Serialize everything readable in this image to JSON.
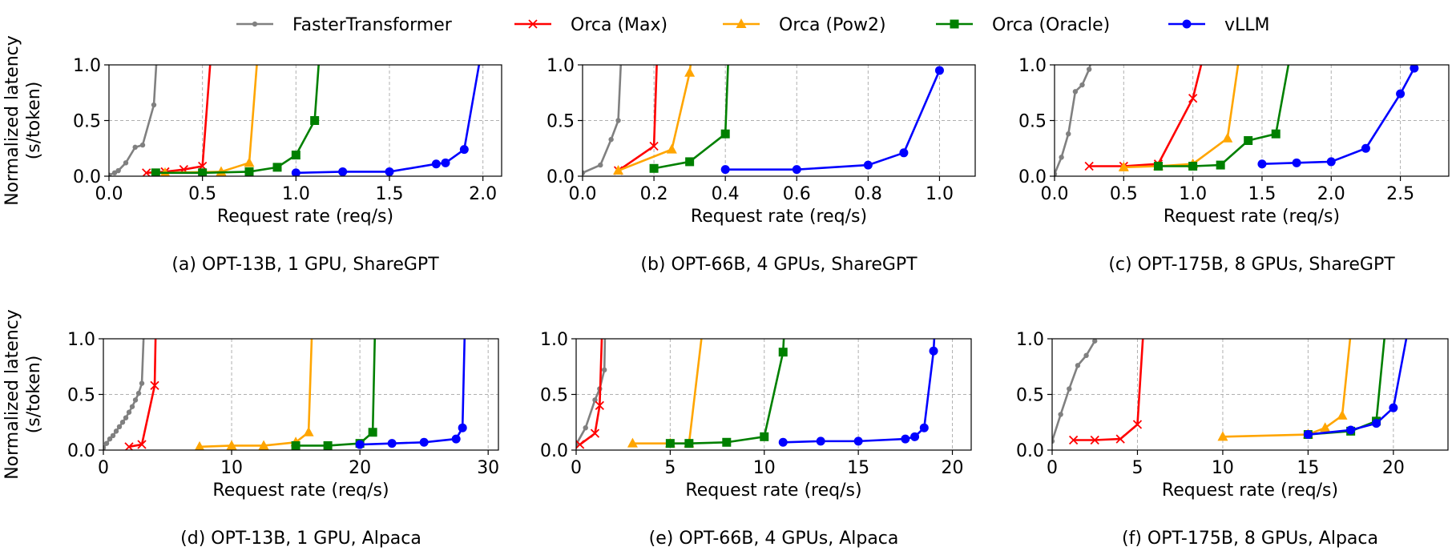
{
  "legend": {
    "placement": "top",
    "entries": [
      {
        "name": "FasterTransformer",
        "color": "#808080",
        "marker": "dot"
      },
      {
        "name": "Orca (Max)",
        "color": "#ff0000",
        "marker": "x"
      },
      {
        "name": "Orca (Pow2)",
        "color": "#ffa500",
        "marker": "triangle"
      },
      {
        "name": "Orca (Oracle)",
        "color": "#008000",
        "marker": "square"
      },
      {
        "name": "vLLM",
        "color": "#0000ff",
        "marker": "circle"
      }
    ]
  },
  "chart_data": [
    {
      "type": "line",
      "caption": "(a) OPT-13B, 1 GPU, ShareGPT",
      "xlabel": "Request rate (req/s)",
      "ylabel": "Normalized latency\n(s/token)",
      "xlim": [
        0,
        2.1
      ],
      "ylim": [
        0,
        1.0
      ],
      "xticks": [
        0.0,
        0.5,
        1.0,
        1.5,
        2.0
      ],
      "xtick_labels": [
        "0.0",
        "0.5",
        "1.0",
        "1.5",
        "2.0"
      ],
      "yticks": [
        0.0,
        0.5,
        1.0
      ],
      "ytick_labels": [
        "0.0",
        "0.5",
        "1.0"
      ],
      "grid": true,
      "series": [
        {
          "name": "FasterTransformer",
          "x": [
            0,
            0.03,
            0.05,
            0.09,
            0.14,
            0.18,
            0.24,
            0.26
          ],
          "y": [
            0.01,
            0.03,
            0.05,
            0.12,
            0.26,
            0.28,
            0.64,
            1.2
          ]
        },
        {
          "name": "Orca (Max)",
          "x": [
            0.2,
            0.3,
            0.4,
            0.5,
            0.55
          ],
          "y": [
            0.03,
            0.04,
            0.06,
            0.09,
            1.2
          ]
        },
        {
          "name": "Orca (Pow2)",
          "x": [
            0.3,
            0.6,
            0.75,
            0.8
          ],
          "y": [
            0.03,
            0.04,
            0.12,
            1.2
          ]
        },
        {
          "name": "Orca (Oracle)",
          "x": [
            0.25,
            0.5,
            0.75,
            0.9,
            1.0,
            1.1,
            1.13
          ],
          "y": [
            0.03,
            0.03,
            0.04,
            0.08,
            0.19,
            0.5,
            1.2
          ]
        },
        {
          "name": "vLLM",
          "x": [
            1.0,
            1.25,
            1.5,
            1.75,
            1.8,
            1.9,
            2.0
          ],
          "y": [
            0.03,
            0.04,
            0.04,
            0.11,
            0.12,
            0.24,
            1.2
          ]
        }
      ]
    },
    {
      "type": "line",
      "caption": "(b) OPT-66B, 4 GPUs, ShareGPT",
      "xlabel": "Request rate (req/s)",
      "ylabel": "",
      "xlim": [
        0,
        1.1
      ],
      "ylim": [
        0,
        1.0
      ],
      "xticks": [
        0.0,
        0.2,
        0.4,
        0.6,
        0.8,
        1.0
      ],
      "xtick_labels": [
        "0.0",
        "0.2",
        "0.4",
        "0.6",
        "0.8",
        "1.0"
      ],
      "yticks": [
        0.0,
        0.5,
        1.0
      ],
      "ytick_labels": [
        "0.0",
        "0.5",
        "1.0"
      ],
      "grid": true,
      "series": [
        {
          "name": "FasterTransformer",
          "x": [
            0,
            0.05,
            0.08,
            0.1,
            0.11
          ],
          "y": [
            0.03,
            0.1,
            0.33,
            0.5,
            1.2
          ]
        },
        {
          "name": "Orca (Max)",
          "x": [
            0.1,
            0.2,
            0.21
          ],
          "y": [
            0.05,
            0.27,
            1.2
          ]
        },
        {
          "name": "Orca (Pow2)",
          "x": [
            0.1,
            0.25,
            0.3,
            0.31
          ],
          "y": [
            0.05,
            0.24,
            0.93,
            1.2
          ]
        },
        {
          "name": "Orca (Oracle)",
          "x": [
            0.2,
            0.3,
            0.4,
            0.41
          ],
          "y": [
            0.07,
            0.13,
            0.38,
            1.2
          ]
        },
        {
          "name": "vLLM",
          "x": [
            0.4,
            0.6,
            0.8,
            0.9,
            1.0
          ],
          "y": [
            0.06,
            0.06,
            0.1,
            0.21,
            0.95
          ]
        }
      ]
    },
    {
      "type": "line",
      "caption": "(c) OPT-175B, 8 GPUs, ShareGPT",
      "xlabel": "Request rate (req/s)",
      "ylabel": "",
      "xlim": [
        0,
        2.85
      ],
      "ylim": [
        0,
        1.0
      ],
      "xticks": [
        0.0,
        0.5,
        1.0,
        1.5,
        2.0,
        2.5
      ],
      "xtick_labels": [
        "0.0",
        "0.5",
        "1.0",
        "1.5",
        "2.0",
        "2.5"
      ],
      "yticks": [
        0.0,
        0.5,
        1.0
      ],
      "ytick_labels": [
        "0.0",
        "0.5",
        "1.0"
      ],
      "grid": true,
      "series": [
        {
          "name": "FasterTransformer",
          "x": [
            0,
            0.05,
            0.1,
            0.15,
            0.2,
            0.25,
            0.3
          ],
          "y": [
            0.02,
            0.17,
            0.38,
            0.76,
            0.82,
            0.96,
            1.2
          ]
        },
        {
          "name": "Orca (Max)",
          "x": [
            0.25,
            0.5,
            0.75,
            1.0,
            1.1
          ],
          "y": [
            0.09,
            0.09,
            0.11,
            0.7,
            1.2
          ]
        },
        {
          "name": "Orca (Pow2)",
          "x": [
            0.5,
            0.75,
            1.0,
            1.25,
            1.35
          ],
          "y": [
            0.08,
            0.09,
            0.11,
            0.34,
            1.2
          ]
        },
        {
          "name": "Orca (Oracle)",
          "x": [
            0.75,
            1.0,
            1.2,
            1.4,
            1.6,
            1.72
          ],
          "y": [
            0.09,
            0.09,
            0.1,
            0.32,
            0.38,
            1.2
          ]
        },
        {
          "name": "vLLM",
          "x": [
            1.5,
            1.75,
            2.0,
            2.25,
            2.5,
            2.6
          ],
          "y": [
            0.11,
            0.12,
            0.13,
            0.25,
            0.74,
            0.97
          ]
        }
      ]
    },
    {
      "type": "line",
      "caption": "(d) OPT-13B, 1 GPU, Alpaca",
      "xlabel": "Request rate (req/s)",
      "ylabel": "Normalized latency\n(s/token)",
      "xlim": [
        0,
        30.8
      ],
      "ylim": [
        0,
        1.0
      ],
      "xticks": [
        0,
        10,
        20,
        30
      ],
      "xtick_labels": [
        "0",
        "10",
        "20",
        "30"
      ],
      "yticks": [
        0.0,
        0.5,
        1.0
      ],
      "ytick_labels": [
        "0.0",
        "0.5",
        "1.0"
      ],
      "grid": true,
      "series": [
        {
          "name": "FasterTransformer",
          "x": [
            0,
            0.25,
            0.5,
            0.75,
            1.0,
            1.25,
            1.5,
            1.75,
            2.0,
            2.25,
            2.5,
            2.75,
            3.0,
            3.2
          ],
          "y": [
            0.02,
            0.06,
            0.1,
            0.13,
            0.17,
            0.21,
            0.25,
            0.29,
            0.34,
            0.39,
            0.45,
            0.51,
            0.6,
            1.2
          ]
        },
        {
          "name": "Orca (Max)",
          "x": [
            2,
            3,
            4,
            4.1
          ],
          "y": [
            0.03,
            0.05,
            0.58,
            1.2
          ]
        },
        {
          "name": "Orca (Pow2)",
          "x": [
            7.5,
            10,
            12.5,
            15,
            16,
            16.3
          ],
          "y": [
            0.03,
            0.04,
            0.04,
            0.07,
            0.16,
            1.2
          ]
        },
        {
          "name": "Orca (Oracle)",
          "x": [
            15,
            17.5,
            20,
            21,
            21.2
          ],
          "y": [
            0.04,
            0.04,
            0.06,
            0.16,
            1.2
          ]
        },
        {
          "name": "vLLM",
          "x": [
            20,
            22.5,
            25,
            27.5,
            28,
            28.2
          ],
          "y": [
            0.05,
            0.06,
            0.07,
            0.1,
            0.2,
            1.2
          ]
        }
      ]
    },
    {
      "type": "line",
      "caption": "(e) OPT-66B, 4 GPUs, Alpaca",
      "xlabel": "Request rate (req/s)",
      "ylabel": "",
      "xlim": [
        0,
        21
      ],
      "ylim": [
        0,
        1.0
      ],
      "xticks": [
        0,
        5,
        10,
        15,
        20
      ],
      "xtick_labels": [
        "0",
        "5",
        "10",
        "15",
        "20"
      ],
      "yticks": [
        0.0,
        0.5,
        1.0
      ],
      "ytick_labels": [
        "0.0",
        "0.5",
        "1.0"
      ],
      "grid": true,
      "series": [
        {
          "name": "FasterTransformer",
          "x": [
            0,
            0.5,
            1.0,
            1.25,
            1.5,
            1.55
          ],
          "y": [
            0.05,
            0.2,
            0.45,
            0.55,
            0.72,
            1.2
          ]
        },
        {
          "name": "Orca (Max)",
          "x": [
            0.2,
            1.0,
            1.25,
            1.4
          ],
          "y": [
            0.05,
            0.15,
            0.4,
            1.2
          ]
        },
        {
          "name": "Orca (Pow2)",
          "x": [
            3,
            5,
            6,
            6.8
          ],
          "y": [
            0.06,
            0.06,
            0.06,
            1.2
          ]
        },
        {
          "name": "Orca (Oracle)",
          "x": [
            5,
            6,
            8,
            10,
            11,
            11.1
          ],
          "y": [
            0.06,
            0.06,
            0.07,
            0.12,
            0.88,
            1.2
          ]
        },
        {
          "name": "vLLM",
          "x": [
            11,
            13,
            15,
            17.5,
            18,
            18.5,
            19,
            19.1
          ],
          "y": [
            0.07,
            0.08,
            0.08,
            0.1,
            0.12,
            0.2,
            0.89,
            1.2
          ]
        }
      ]
    },
    {
      "type": "line",
      "caption": "(f) OPT-175B, 8 GPUs, Alpaca",
      "xlabel": "Request rate (req/s)",
      "ylabel": "",
      "xlim": [
        0,
        23.2
      ],
      "ylim": [
        0,
        1.0
      ],
      "xticks": [
        0,
        5,
        10,
        15,
        20
      ],
      "xtick_labels": [
        "0",
        "5",
        "10",
        "15",
        "20"
      ],
      "yticks": [
        0.0,
        0.5,
        1.0
      ],
      "ytick_labels": [
        "0.0",
        "0.5",
        "1.0"
      ],
      "grid": true,
      "series": [
        {
          "name": "FasterTransformer",
          "x": [
            0,
            0.5,
            1.0,
            1.5,
            2.0,
            2.5,
            3.0
          ],
          "y": [
            0.08,
            0.32,
            0.55,
            0.76,
            0.85,
            0.98,
            1.2
          ]
        },
        {
          "name": "Orca (Max)",
          "x": [
            1.25,
            2.5,
            4,
            5,
            5.4
          ],
          "y": [
            0.09,
            0.09,
            0.1,
            0.23,
            1.2
          ]
        },
        {
          "name": "Orca (Pow2)",
          "x": [
            10,
            15,
            16,
            17,
            17.6
          ],
          "y": [
            0.12,
            0.14,
            0.2,
            0.31,
            1.2
          ]
        },
        {
          "name": "Orca (Oracle)",
          "x": [
            15,
            17.5,
            19,
            19.6
          ],
          "y": [
            0.14,
            0.17,
            0.26,
            1.2
          ]
        },
        {
          "name": "vLLM",
          "x": [
            15,
            17.5,
            19,
            20,
            21
          ],
          "y": [
            0.14,
            0.18,
            0.24,
            0.38,
            1.2
          ]
        }
      ]
    }
  ]
}
